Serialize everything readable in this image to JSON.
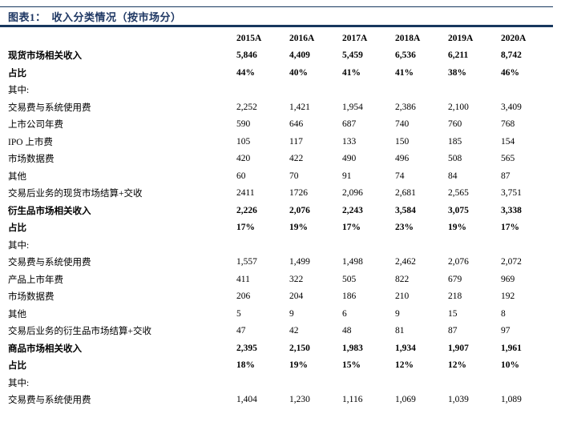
{
  "figure": {
    "label": "图表1：",
    "title": "收入分类情况（按市场分）"
  },
  "colors": {
    "rule_navy": "#17375E",
    "title_text": "#1F3864",
    "body_text": "#000000"
  },
  "table": {
    "column_headers": [
      "2015A",
      "2016A",
      "2017A",
      "2018A",
      "2019A",
      "2020A"
    ],
    "rows": [
      {
        "label": "现货市场相关收入",
        "bold": true,
        "values": [
          "5,846",
          "4,409",
          "5,459",
          "6,536",
          "6,211",
          "8,742"
        ]
      },
      {
        "label": "占比",
        "bold": true,
        "values": [
          "44%",
          "40%",
          "41%",
          "41%",
          "38%",
          "46%"
        ]
      },
      {
        "label": "其中:",
        "bold": false,
        "values": [
          "",
          "",
          "",
          "",
          "",
          ""
        ]
      },
      {
        "label": "交易费与系统使用费",
        "bold": false,
        "values": [
          "2,252",
          "1,421",
          "1,954",
          "2,386",
          "2,100",
          "3,409"
        ]
      },
      {
        "label": "上市公司年费",
        "bold": false,
        "values": [
          "590",
          "646",
          "687",
          "740",
          "760",
          "768"
        ]
      },
      {
        "label": "IPO 上市费",
        "bold": false,
        "values": [
          "105",
          "117",
          "133",
          "150",
          "185",
          "154"
        ]
      },
      {
        "label": "市场数据费",
        "bold": false,
        "values": [
          "420",
          "422",
          "490",
          "496",
          "508",
          "565"
        ]
      },
      {
        "label": "其他",
        "bold": false,
        "values": [
          "60",
          "70",
          "91",
          "74",
          "84",
          "87"
        ]
      },
      {
        "label": "交易后业务的现货市场结算+交收",
        "bold": false,
        "values": [
          "2411",
          "1726",
          "2,096",
          "2,681",
          "2,565",
          "3,751"
        ]
      },
      {
        "label": "衍生品市场相关收入",
        "bold": true,
        "values": [
          "2,226",
          "2,076",
          "2,243",
          "3,584",
          "3,075",
          "3,338"
        ]
      },
      {
        "label": "占比",
        "bold": true,
        "values": [
          "17%",
          "19%",
          "17%",
          "23%",
          "19%",
          "17%"
        ]
      },
      {
        "label": "其中:",
        "bold": false,
        "values": [
          "",
          "",
          "",
          "",
          "",
          ""
        ]
      },
      {
        "label": "交易费与系统使用费",
        "bold": false,
        "values": [
          "1,557",
          "1,499",
          "1,498",
          "2,462",
          "2,076",
          "2,072"
        ]
      },
      {
        "label": "产品上市年费",
        "bold": false,
        "values": [
          "411",
          "322",
          "505",
          "822",
          "679",
          "969"
        ]
      },
      {
        "label": "市场数据费",
        "bold": false,
        "values": [
          "206",
          "204",
          "186",
          "210",
          "218",
          "192"
        ]
      },
      {
        "label": "其他",
        "bold": false,
        "values": [
          "5",
          "9",
          "6",
          "9",
          "15",
          "8"
        ]
      },
      {
        "label": "交易后业务的衍生品市场结算+交收",
        "bold": false,
        "values": [
          "47",
          "42",
          "48",
          "81",
          "87",
          "97"
        ]
      },
      {
        "label": "商品市场相关收入",
        "bold": true,
        "values": [
          "2,395",
          "2,150",
          "1,983",
          "1,934",
          "1,907",
          "1,961"
        ]
      },
      {
        "label": "占比",
        "bold": true,
        "values": [
          "18%",
          "19%",
          "15%",
          "12%",
          "12%",
          "10%"
        ]
      },
      {
        "label": "其中:",
        "bold": false,
        "values": [
          "",
          "",
          "",
          "",
          "",
          ""
        ]
      },
      {
        "label": "交易费与系统使用费",
        "bold": false,
        "values": [
          "1,404",
          "1,230",
          "1,116",
          "1,069",
          "1,039",
          "1,089"
        ]
      }
    ]
  }
}
